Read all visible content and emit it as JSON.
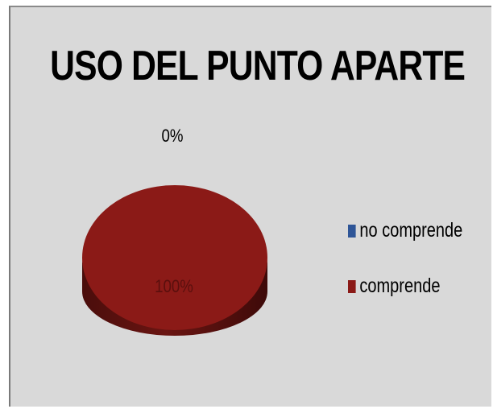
{
  "chart_data": {
    "type": "pie",
    "title": "USO DEL PUNTO APARTE",
    "categories": [
      "no comprende",
      "comprende"
    ],
    "values": [
      0,
      100
    ],
    "data_labels": [
      "0%",
      "100%"
    ],
    "colors": [
      "#2e5597",
      "#8b1a17"
    ],
    "legend_position": "right",
    "style": "3d"
  }
}
